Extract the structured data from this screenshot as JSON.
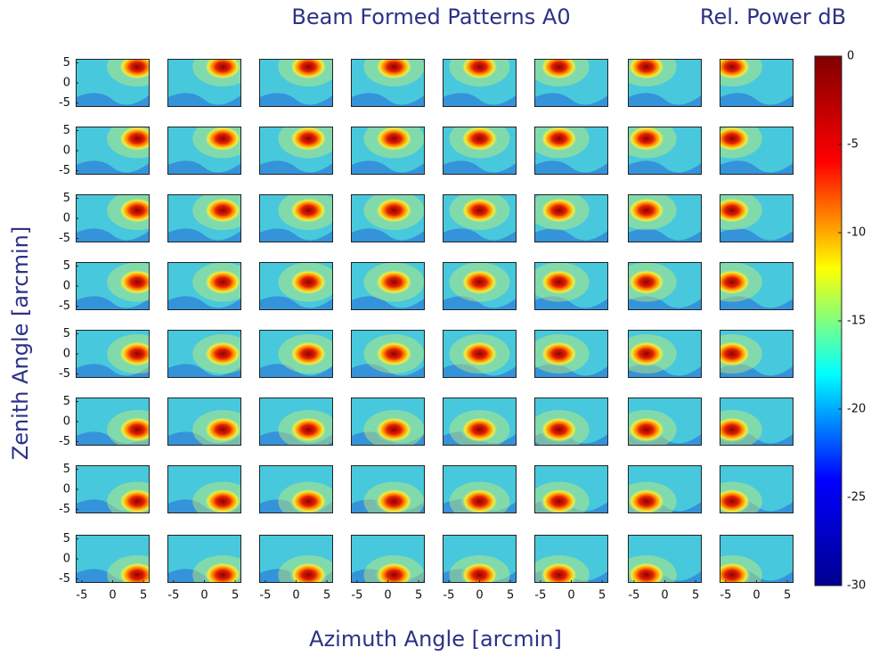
{
  "chart_data": {
    "type": "heatmap",
    "title": "Beam Formed Patterns A0",
    "colorbar_label": "Rel. Power dB",
    "xlabel": "Azimuth Angle [arcmin]",
    "ylabel": "Zenith Angle [arcmin]",
    "xlim": [
      -6,
      6
    ],
    "ylim": [
      -6,
      6
    ],
    "xticks": [
      -5,
      0,
      5
    ],
    "yticks": [
      5,
      0,
      -5
    ],
    "beam_x": [
      4,
      3,
      2,
      1,
      0,
      -2,
      -3,
      -4
    ],
    "beam_y": [
      4,
      3,
      2,
      1,
      0,
      -2,
      -3,
      -4
    ],
    "clim": [
      -30,
      0
    ],
    "cticks": [
      0,
      -5,
      -10,
      -15,
      -20,
      -25,
      -30
    ],
    "colormap": [
      "#00008f",
      "#0000ff",
      "#00ffff",
      "#ffff00",
      "#ff0000",
      "#800000"
    ]
  }
}
